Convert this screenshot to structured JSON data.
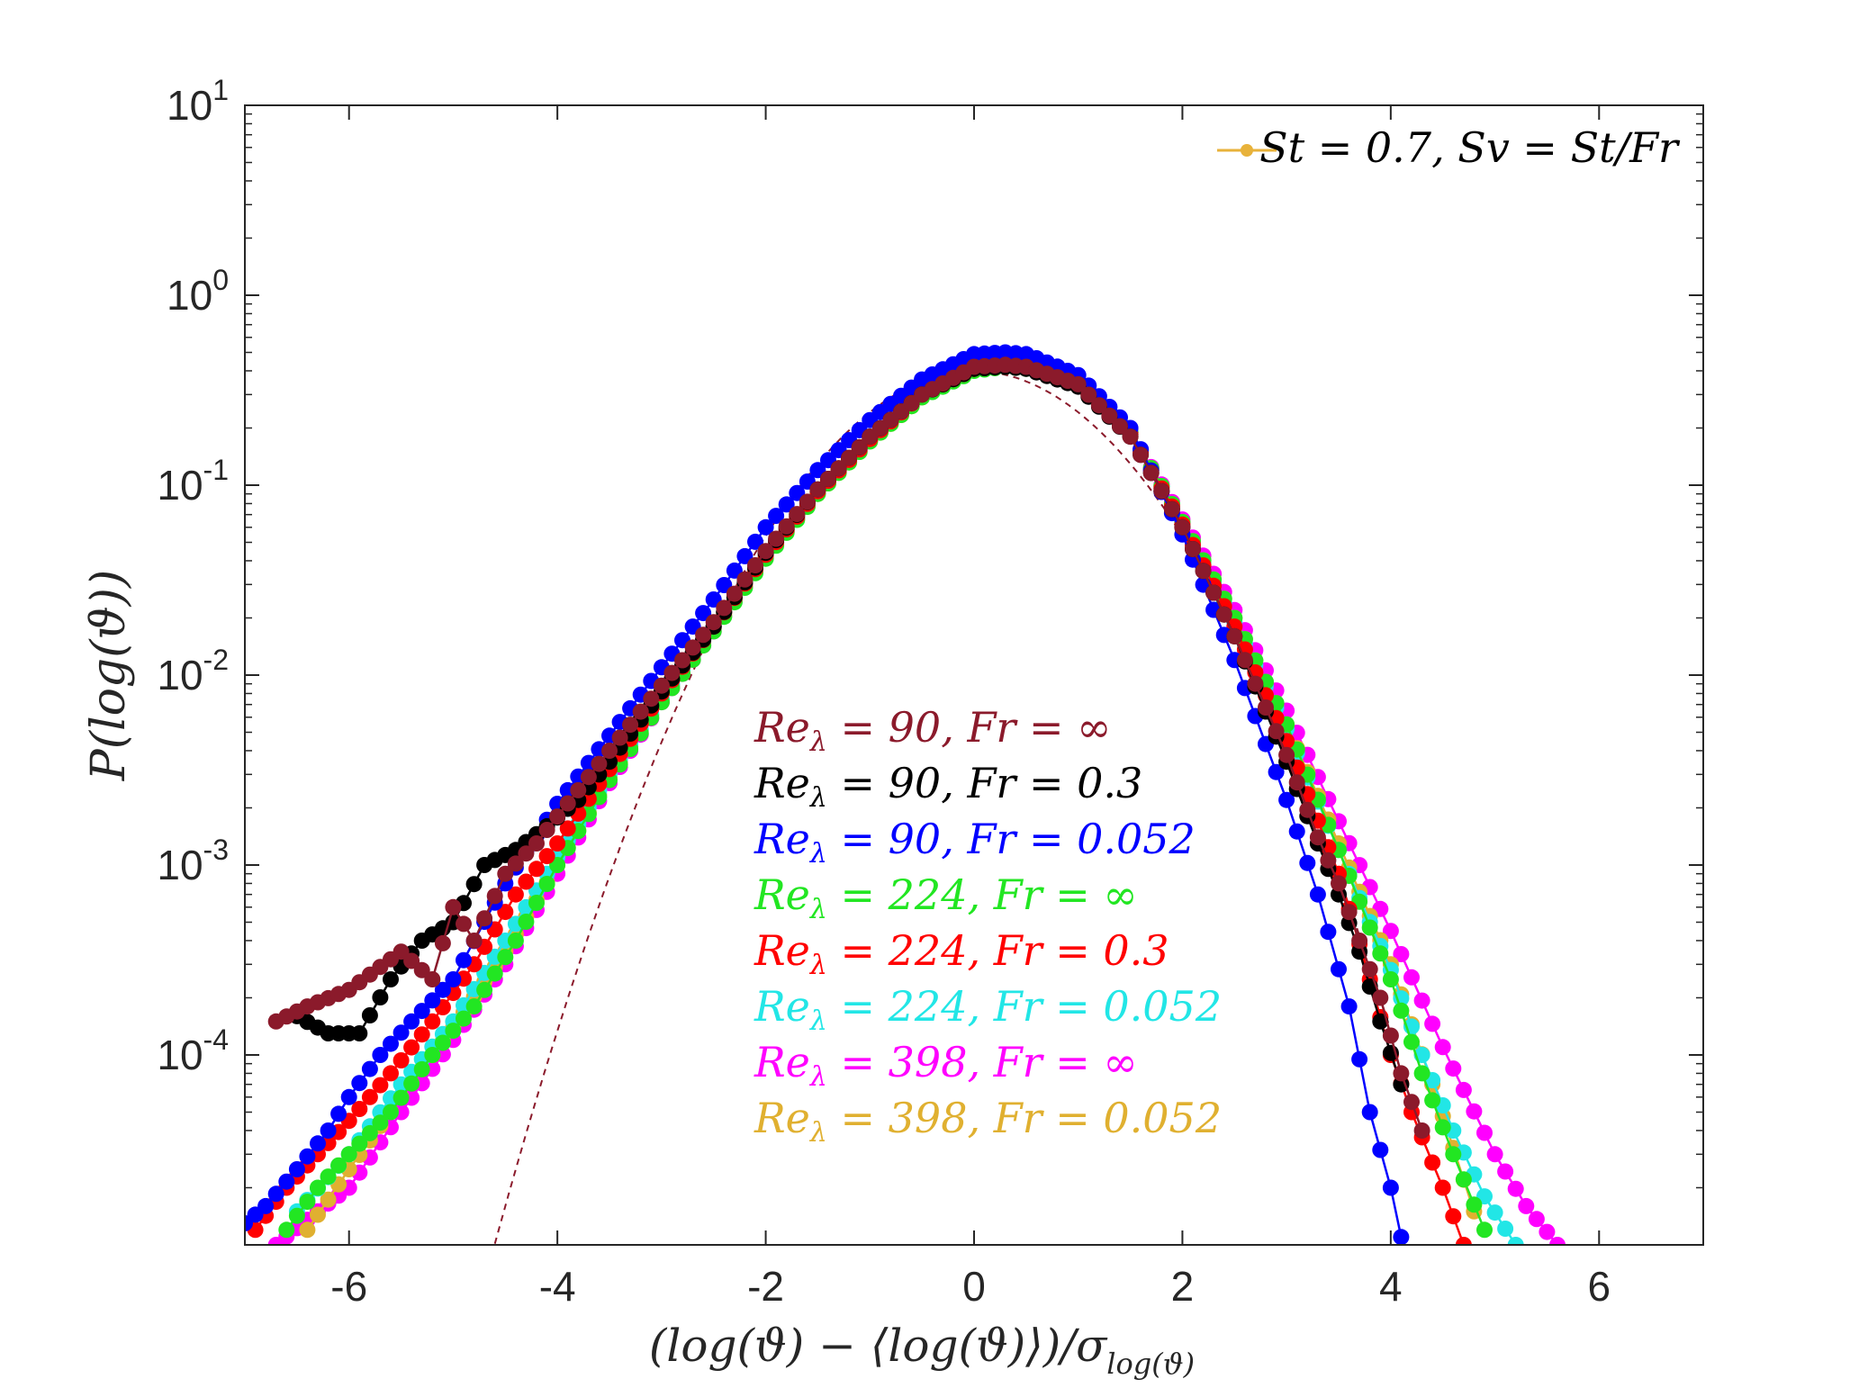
{
  "chart_data": {
    "type": "scatter",
    "xlabel": "(log(ϑ) − ⟨log(ϑ)⟩)/σ",
    "xlabel_sub": "log(ϑ)",
    "ylabel": "P(log(ϑ))",
    "xlim": [
      -7,
      7
    ],
    "ylim": [
      1e-05,
      10
    ],
    "yscale": "log",
    "grid": false,
    "x_ticks": [
      -6,
      -4,
      -2,
      0,
      2,
      4,
      6
    ],
    "x_tick_labels": [
      "-6",
      "-4",
      "-2",
      "0",
      "2",
      "4",
      "6"
    ],
    "y_ticks": [
      10,
      1,
      0.1,
      0.01,
      0.001,
      0.0001
    ],
    "y_tick_base": "10",
    "y_tick_exponents": [
      "1",
      "0",
      "-1",
      "-2",
      "-3",
      "-4"
    ],
    "legend": {
      "placement": "top-right",
      "label": "St = 0.7, Sv = St/Fr",
      "color": "#E8B23A"
    },
    "reference_curve": {
      "name": "gaussian",
      "style": "dashed",
      "color": "#8B1A2B",
      "x": [
        -4.6,
        -4.0,
        -3.5,
        -3.0,
        -2.5,
        -2.0,
        -1.5,
        -1.0,
        -0.5,
        0.0,
        0.5,
        1.0,
        1.5,
        2.0,
        2.5,
        3.0,
        3.5,
        4.0
      ],
      "y": [
        1.04e-05,
        0.000134,
        0.000873,
        0.00443,
        0.0175,
        0.054,
        0.1295,
        0.242,
        0.352,
        0.399,
        0.352,
        0.242,
        0.1295,
        0.054,
        0.0175,
        0.00443,
        0.000873,
        0.000134
      ]
    },
    "series": [
      {
        "name": "Re_λ = 90, Fr = ∞",
        "label_left": "Re",
        "label_sub": "λ",
        "label_right": " = 90, Fr = ∞",
        "color": "#8B1A2B",
        "x": [
          -6.7,
          -6.4,
          -6.0,
          -5.5,
          -5.2,
          -5.0,
          -4.8,
          -4.5,
          -4.2,
          -4.0,
          -3.5,
          -3.0,
          -2.5,
          -2.0,
          -1.5,
          -1.0,
          -0.5,
          0.0,
          0.3,
          0.5,
          1.0,
          1.5,
          2.0,
          2.5,
          3.0,
          3.3,
          3.5,
          3.7,
          3.9,
          4.1,
          4.3
        ],
        "y": [
          0.00015,
          0.00018,
          0.00022,
          0.00035,
          0.00025,
          0.0006,
          0.0004,
          0.0009,
          0.0013,
          0.0018,
          0.004,
          0.0088,
          0.019,
          0.045,
          0.095,
          0.18,
          0.3,
          0.42,
          0.43,
          0.42,
          0.34,
          0.18,
          0.06,
          0.016,
          0.0038,
          0.0014,
          0.0008,
          0.0004,
          0.0002,
          8e-05,
          4e-05
        ]
      },
      {
        "name": "Re_λ = 90, Fr = 0.3",
        "label_left": "Re",
        "label_sub": "λ",
        "label_right": " = 90, Fr = 0.3",
        "color": "#000000",
        "x": [
          -6.5,
          -6.2,
          -5.9,
          -5.6,
          -5.3,
          -5.0,
          -4.7,
          -4.4,
          -4.1,
          -3.8,
          -3.5,
          -3.0,
          -2.5,
          -2.0,
          -1.5,
          -1.0,
          -0.5,
          0.0,
          0.3,
          0.5,
          1.0,
          1.5,
          2.0,
          2.5,
          3.0,
          3.3,
          3.5,
          3.7,
          3.9,
          4.1
        ],
        "y": [
          0.00016,
          0.00013,
          0.00013,
          0.00025,
          0.0004,
          0.0005,
          0.001,
          0.0012,
          0.0016,
          0.0022,
          0.0035,
          0.0082,
          0.018,
          0.044,
          0.095,
          0.18,
          0.3,
          0.41,
          0.42,
          0.41,
          0.33,
          0.18,
          0.06,
          0.016,
          0.0035,
          0.0013,
          0.0007,
          0.00035,
          0.00015,
          7e-05
        ]
      },
      {
        "name": "Re_λ = 90, Fr = 0.052",
        "label_left": "Re",
        "label_sub": "λ",
        "label_right": " = 90, Fr = 0.052",
        "color": "#0000FF",
        "x": [
          -7.0,
          -6.8,
          -6.5,
          -6.2,
          -6.0,
          -5.7,
          -5.4,
          -5.0,
          -4.5,
          -4.0,
          -3.5,
          -3.0,
          -2.5,
          -2.0,
          -1.5,
          -1.0,
          -0.5,
          0.0,
          0.3,
          0.5,
          1.0,
          1.5,
          2.0,
          2.5,
          3.0,
          3.3,
          3.6,
          3.8,
          4.0,
          4.1
        ],
        "y": [
          1.3e-05,
          1.6e-05,
          2.5e-05,
          4e-05,
          6e-05,
          0.0001,
          0.00015,
          0.00025,
          0.0008,
          0.0021,
          0.0048,
          0.011,
          0.025,
          0.06,
          0.12,
          0.22,
          0.36,
          0.49,
          0.5,
          0.49,
          0.38,
          0.2,
          0.055,
          0.012,
          0.0022,
          0.0007,
          0.00018,
          5e-05,
          2e-05,
          1.1e-05
        ]
      },
      {
        "name": "Re_λ = 224, Fr = ∞",
        "label_left": "Re",
        "label_sub": "λ",
        "label_right": " = 224, Fr = ∞",
        "color": "#22E622",
        "x": [
          -6.6,
          -6.3,
          -6.0,
          -5.6,
          -5.2,
          -4.8,
          -4.4,
          -4.0,
          -3.5,
          -3.0,
          -2.5,
          -2.0,
          -1.5,
          -1.0,
          -0.5,
          0.0,
          0.3,
          0.5,
          1.0,
          1.5,
          2.0,
          2.5,
          3.0,
          3.5,
          4.0,
          4.3,
          4.6,
          4.9
        ],
        "y": [
          1.2e-05,
          2e-05,
          3e-05,
          5e-05,
          0.0001,
          0.00018,
          0.0004,
          0.001,
          0.0028,
          0.0072,
          0.017,
          0.041,
          0.09,
          0.17,
          0.29,
          0.4,
          0.42,
          0.41,
          0.34,
          0.19,
          0.064,
          0.02,
          0.0055,
          0.0012,
          0.00025,
          8e-05,
          3e-05,
          1.2e-05
        ]
      },
      {
        "name": "Re_λ = 224, Fr = 0.3",
        "label_left": "Re",
        "label_sub": "λ",
        "label_right": " = 224, Fr = 0.3",
        "color": "#FF0000",
        "x": [
          -6.9,
          -6.6,
          -6.3,
          -6.0,
          -5.6,
          -5.2,
          -4.8,
          -4.4,
          -4.0,
          -3.5,
          -3.0,
          -2.5,
          -2.0,
          -1.5,
          -1.0,
          -0.5,
          0.0,
          0.3,
          0.5,
          1.0,
          1.5,
          2.0,
          2.5,
          3.0,
          3.5,
          3.8,
          4.0,
          4.2,
          4.5,
          4.7
        ],
        "y": [
          1.2e-05,
          2e-05,
          3e-05,
          4.5e-05,
          8e-05,
          0.00015,
          0.0003,
          0.0007,
          0.0013,
          0.0032,
          0.008,
          0.018,
          0.043,
          0.093,
          0.175,
          0.3,
          0.41,
          0.43,
          0.42,
          0.34,
          0.185,
          0.062,
          0.018,
          0.0045,
          0.0009,
          0.00025,
          0.0001,
          5e-05,
          2e-05,
          1e-05
        ]
      },
      {
        "name": "Re_λ = 224, Fr = 0.052",
        "label_left": "Re",
        "label_sub": "λ",
        "label_right": " = 224, Fr = 0.052",
        "color": "#22E6E6",
        "x": [
          -6.5,
          -6.0,
          -5.5,
          -5.0,
          -4.5,
          -4.0,
          -3.5,
          -3.0,
          -2.5,
          -2.0,
          -1.5,
          -1.0,
          -0.5,
          0.0,
          0.3,
          0.5,
          1.0,
          1.5,
          2.0,
          2.5,
          3.0,
          3.5,
          4.0,
          4.3,
          4.6,
          4.9,
          5.2
        ],
        "y": [
          1.5e-05,
          3e-05,
          7e-05,
          0.00015,
          0.0004,
          0.0011,
          0.003,
          0.0075,
          0.018,
          0.043,
          0.092,
          0.175,
          0.3,
          0.42,
          0.44,
          0.43,
          0.34,
          0.19,
          0.063,
          0.019,
          0.0052,
          0.0012,
          0.00028,
          0.0001,
          4e-05,
          1.8e-05,
          1e-05
        ]
      },
      {
        "name": "Re_λ = 398, Fr = ∞",
        "label_left": "Re",
        "label_sub": "λ",
        "label_right": " = 398, Fr = ∞",
        "color": "#FF00FF",
        "x": [
          -6.7,
          -6.3,
          -6.0,
          -5.5,
          -5.0,
          -4.5,
          -4.0,
          -3.5,
          -3.0,
          -2.5,
          -2.0,
          -1.5,
          -1.0,
          -0.5,
          0.0,
          0.3,
          0.5,
          1.0,
          1.5,
          2.0,
          2.5,
          3.0,
          3.5,
          4.0,
          4.5,
          5.0,
          5.3,
          5.6
        ],
        "y": [
          1e-05,
          1.5e-05,
          2e-05,
          5e-05,
          0.00012,
          0.0003,
          0.0009,
          0.0027,
          0.0072,
          0.017,
          0.042,
          0.091,
          0.172,
          0.3,
          0.41,
          0.43,
          0.42,
          0.34,
          0.19,
          0.066,
          0.022,
          0.0065,
          0.0017,
          0.00045,
          0.00011,
          3e-05,
          1.6e-05,
          1e-05
        ]
      },
      {
        "name": "Re_λ = 398, Fr = 0.052",
        "label_left": "Re",
        "label_sub": "λ",
        "label_right": " = 398, Fr = 0.052",
        "color": "#E0B030",
        "x": [
          -6.4,
          -6.0,
          -5.5,
          -5.0,
          -4.5,
          -4.0,
          -3.5,
          -3.0,
          -2.5,
          -2.0,
          -1.5,
          -1.0,
          -0.5,
          0.0,
          0.3,
          0.5,
          1.0,
          1.5,
          2.0,
          2.5,
          3.0,
          3.5,
          4.0,
          4.4,
          4.8
        ],
        "y": [
          1.2e-05,
          2.5e-05,
          6e-05,
          0.00014,
          0.00035,
          0.001,
          0.0029,
          0.0074,
          0.0175,
          0.042,
          0.09,
          0.17,
          0.29,
          0.41,
          0.43,
          0.42,
          0.34,
          0.19,
          0.064,
          0.02,
          0.0055,
          0.0013,
          0.0003,
          7e-05,
          1.5e-05
        ]
      }
    ]
  }
}
